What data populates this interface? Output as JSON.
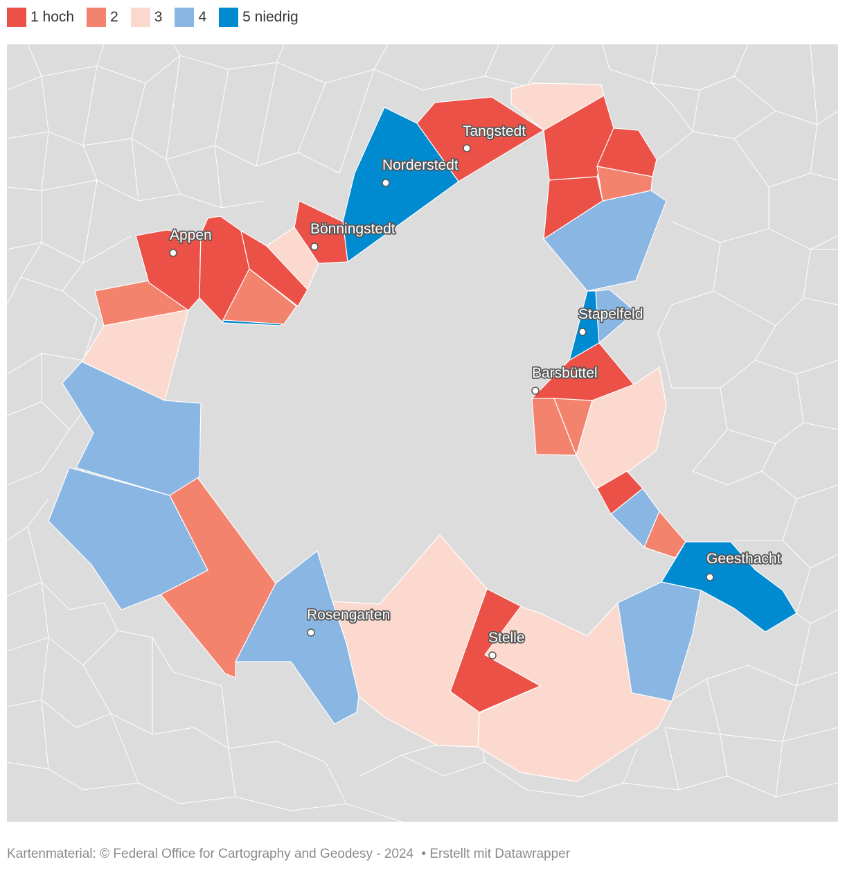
{
  "legend": [
    {
      "label": "1 hoch",
      "color": "#EC5147"
    },
    {
      "label": "2",
      "color": "#F4836E"
    },
    {
      "label": "3",
      "color": "#FBD9CF"
    },
    {
      "label": "4",
      "color": "#8AB6E3"
    },
    {
      "label": "5 niedrig",
      "color": "#008ACF"
    }
  ],
  "places": [
    {
      "name": "Tangstedt"
    },
    {
      "name": "Norderstedt"
    },
    {
      "name": "Bönningstedt"
    },
    {
      "name": "Appen"
    },
    {
      "name": "Stapelfeld"
    },
    {
      "name": "Barsbüttel"
    },
    {
      "name": "Geesthacht"
    },
    {
      "name": "Rosengarten"
    },
    {
      "name": "Stelle"
    }
  ],
  "footer": {
    "source": "Kartenmaterial: © Federal Office for Cartography and Geodesy - 2024",
    "credit": "• Erstellt mit Datawrapper"
  }
}
